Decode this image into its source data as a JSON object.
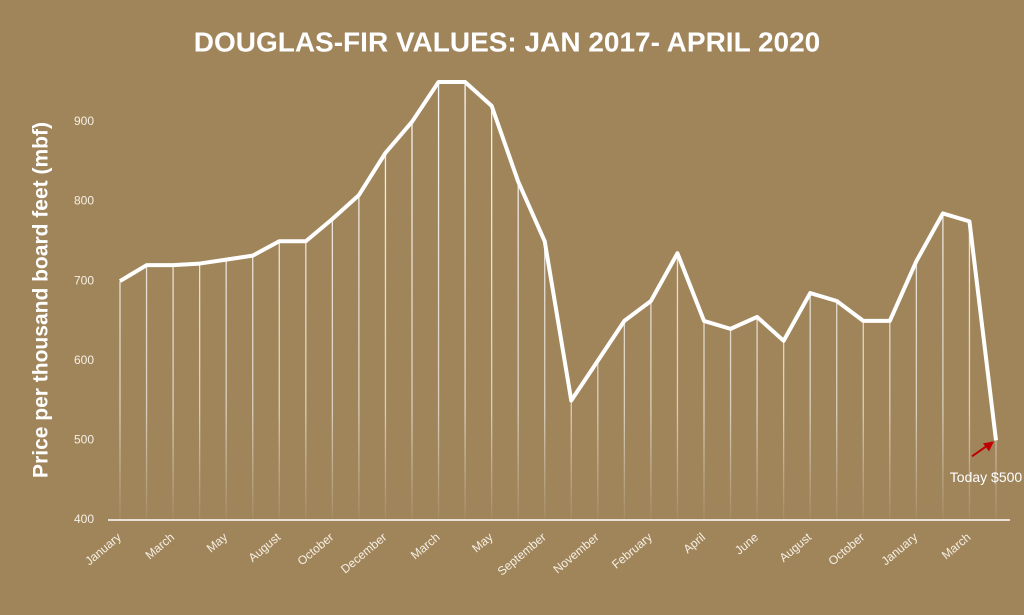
{
  "chart_data": {
    "type": "line",
    "title": "DOUGLAS-FIR VALUES: JAN 2017- APRIL 2020",
    "y_label": "Price per thousand board feet (mbf)",
    "categories": [
      "January",
      null,
      "March",
      null,
      "May",
      null,
      "August",
      null,
      "October",
      null,
      "December",
      null,
      "March",
      null,
      "May",
      null,
      "September",
      null,
      "November",
      null,
      "February",
      null,
      "April",
      null,
      "June",
      null,
      "August",
      null,
      "October",
      null,
      "January",
      null,
      "March",
      null
    ],
    "series": [
      {
        "name": "Douglas-fir",
        "color": "#ffffff",
        "values": [
          700,
          720,
          720,
          722,
          727,
          732,
          750,
          750,
          778,
          808,
          861,
          900,
          950,
          950,
          920,
          825,
          750,
          550,
          600,
          650,
          675,
          735,
          650,
          640,
          655,
          625,
          685,
          675,
          650,
          650,
          725,
          785,
          775,
          500
        ]
      }
    ],
    "ylim": [
      400,
      950
    ],
    "yticks": [
      400,
      500,
      600,
      700,
      800,
      900
    ],
    "annotation": "Today $500",
    "annotation_color": "#c00000",
    "drop_lines": true
  }
}
